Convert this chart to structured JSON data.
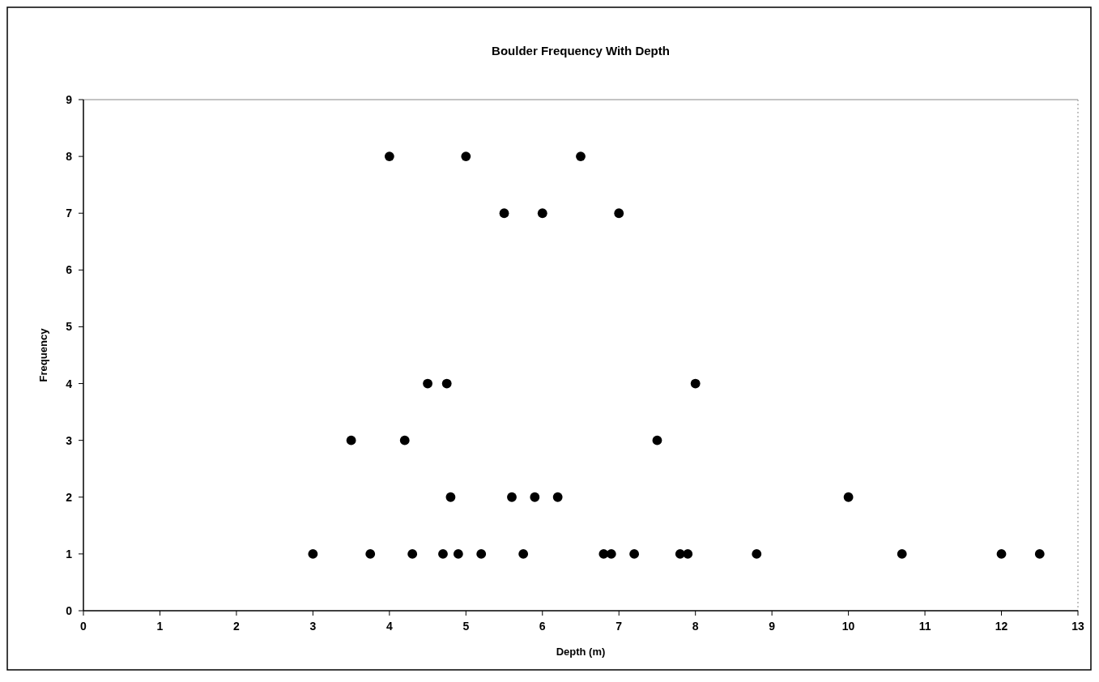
{
  "chart_data": {
    "type": "scatter",
    "title": "Boulder Frequency  With Depth",
    "xlabel": "Depth (m)",
    "ylabel": "Frequency",
    "x": [
      3,
      3.5,
      3.75,
      4,
      4.2,
      4.3,
      4.5,
      4.7,
      4.75,
      4.8,
      4.9,
      5,
      5.2,
      5.5,
      5.6,
      5.75,
      5.9,
      6,
      6.2,
      6.5,
      6.8,
      6.9,
      7,
      7.2,
      7.5,
      7.8,
      7.9,
      8,
      8.8,
      10,
      10.7,
      12,
      12.5
    ],
    "values": [
      1,
      3,
      1,
      8,
      3,
      1,
      4,
      1,
      4,
      2,
      1,
      8,
      1,
      7,
      2,
      1,
      2,
      7,
      2,
      8,
      1,
      1,
      7,
      1,
      3,
      1,
      1,
      4,
      1,
      2,
      1,
      1,
      1
    ],
    "color": "#000000",
    "marker": "circle",
    "xlim": [
      0,
      13
    ],
    "xticks": [
      0,
      1,
      2,
      3,
      4,
      5,
      6,
      7,
      8,
      9,
      10,
      11,
      12,
      13
    ],
    "ylim": [
      0,
      9
    ],
    "yticks": [
      0,
      1,
      2,
      3,
      4,
      5,
      6,
      7,
      8,
      9
    ],
    "grid": false
  }
}
